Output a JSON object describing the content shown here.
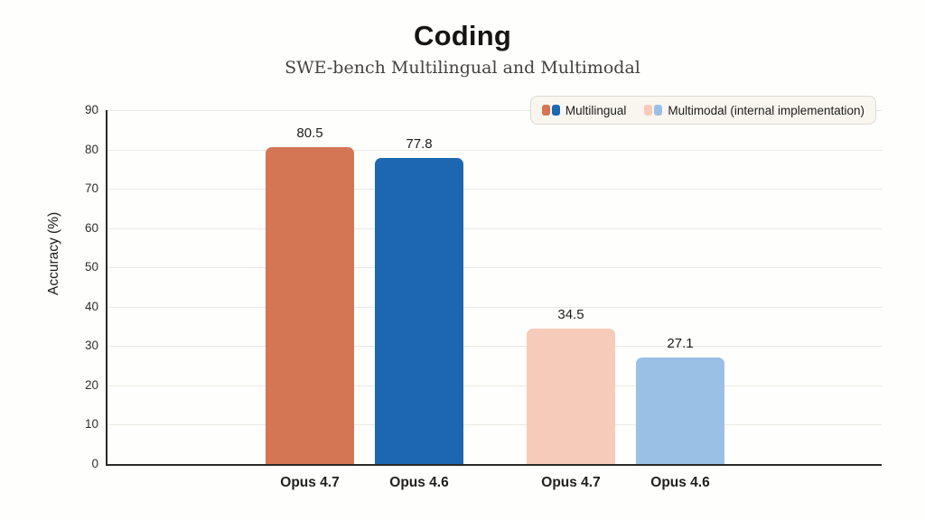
{
  "title": "Coding",
  "subtitle": "SWE-bench Multilingual and Multimodal",
  "ylabel": "Accuracy (%)",
  "chart_data": {
    "type": "bar",
    "title": "Coding",
    "subtitle": "SWE-bench Multilingual and Multimodal",
    "xlabel": "",
    "ylabel": "Accuracy (%)",
    "ylim": [
      0,
      90
    ],
    "yticks": [
      0,
      10,
      20,
      30,
      40,
      50,
      60,
      70,
      80,
      90
    ],
    "grid": true,
    "legend_position": "top-right",
    "categories": [
      "Opus 4.7",
      "Opus 4.6",
      "Opus 4.7",
      "Opus 4.6"
    ],
    "groups": [
      {
        "name": "Multilingual",
        "bars": [
          {
            "category": "Opus 4.7",
            "value": 80.5,
            "color": "#d47654"
          },
          {
            "category": "Opus 4.6",
            "value": 77.8,
            "color": "#1c67b0"
          }
        ]
      },
      {
        "name": "Multimodal (internal implementation)",
        "bars": [
          {
            "category": "Opus 4.7",
            "value": 34.5,
            "color": "#f6cbb9"
          },
          {
            "category": "Opus 4.6",
            "value": 27.1,
            "color": "#9bc0e6"
          }
        ]
      }
    ],
    "colors": {
      "multilingual": [
        "#d47654",
        "#1c67b0"
      ],
      "multimodal": [
        "#f6cbb9",
        "#9bc0e6"
      ],
      "gridline": "#ebe9e3",
      "axis": "#2b2a26",
      "legend_background": "#f8f6ef"
    }
  }
}
